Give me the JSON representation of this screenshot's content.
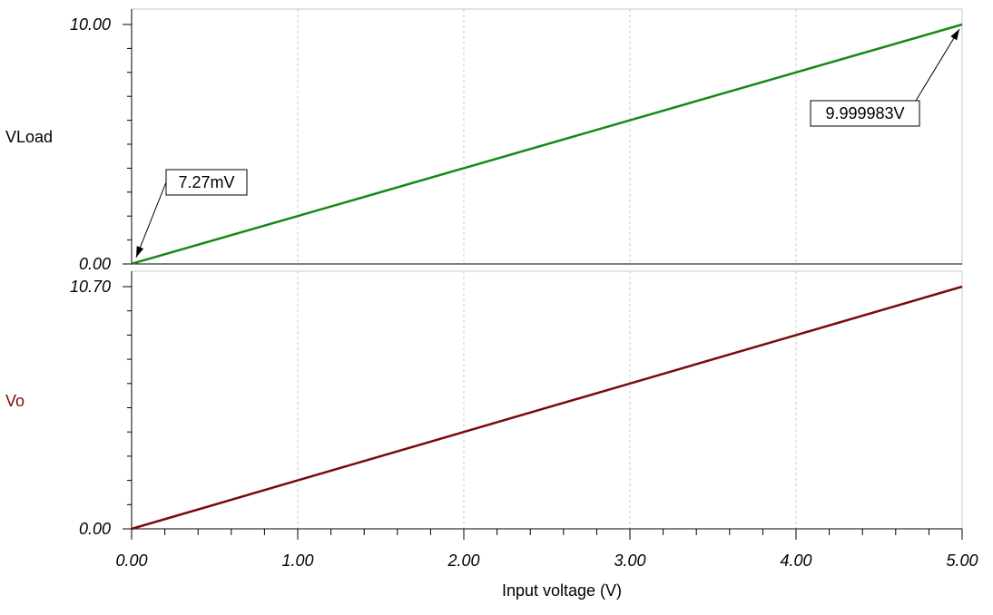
{
  "colors": {
    "vload": "#138a13",
    "vo": "#7a0a0a",
    "grid": "#c8c8c8",
    "axis": "#000000"
  },
  "chart_data": [
    {
      "type": "line",
      "ylabel": "VLoad",
      "xlabel": "Input voltage (V)",
      "xlim": [
        0,
        5
      ],
      "ylim": [
        0,
        10
      ],
      "ytick_labels": {
        "min": "0.00",
        "max": "10.00"
      },
      "x_ticks": [
        0,
        1,
        2,
        3,
        4,
        5
      ],
      "x_tick_labels": [
        "0.00",
        "1.00",
        "2.00",
        "3.00",
        "4.00",
        "5.00"
      ],
      "grid": true,
      "series": [
        {
          "color": "#138a13",
          "x": [
            0,
            1,
            2,
            3,
            4,
            5
          ],
          "y": [
            0.00727,
            2.0,
            4.0,
            6.0,
            8.0,
            9.999983
          ]
        }
      ],
      "annotations": [
        {
          "text": "7.27mV",
          "x": 0,
          "y": 0.00727
        },
        {
          "text": "9.999983V",
          "x": 5,
          "y": 9.999983
        }
      ]
    },
    {
      "type": "line",
      "ylabel": "Vo",
      "xlabel": "Input voltage (V)",
      "xlim": [
        0,
        5
      ],
      "ylim": [
        0,
        10.7
      ],
      "ytick_labels": {
        "min": "0.00",
        "max": "10.70"
      },
      "x_ticks": [
        0,
        1,
        2,
        3,
        4,
        5
      ],
      "x_tick_labels": [
        "0.00",
        "1.00",
        "2.00",
        "3.00",
        "4.00",
        "5.00"
      ],
      "grid": true,
      "series": [
        {
          "color": "#7a0a0a",
          "x": [
            0,
            1,
            2,
            3,
            4,
            5
          ],
          "y": [
            0,
            2.14,
            4.28,
            6.42,
            8.56,
            10.7
          ]
        }
      ],
      "annotations": []
    }
  ]
}
